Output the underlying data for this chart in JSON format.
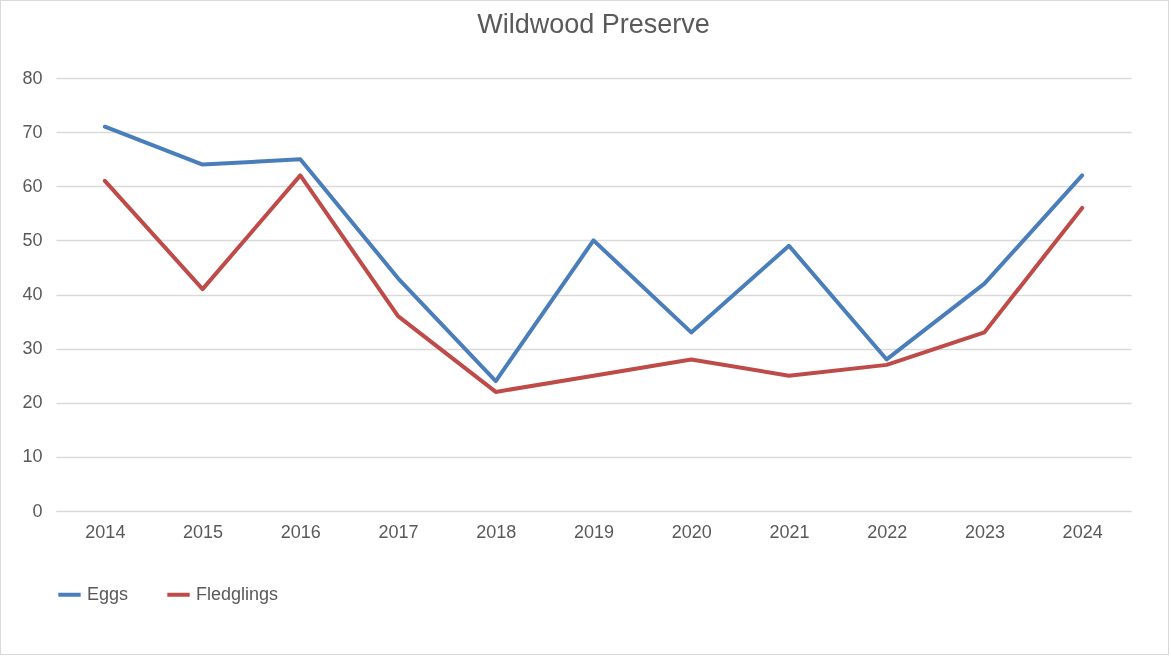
{
  "chart_data": {
    "type": "line",
    "title": "Wildwood Preserve",
    "categories": [
      "2014",
      "2015",
      "2016",
      "2017",
      "2018",
      "2019",
      "2020",
      "2021",
      "2022",
      "2023",
      "2024"
    ],
    "series": [
      {
        "name": "Eggs",
        "color": "#4a7ebb",
        "values": [
          71,
          64,
          65,
          43,
          24,
          50,
          33,
          49,
          28,
          42,
          62
        ]
      },
      {
        "name": "Fledglings",
        "color": "#be4b48",
        "values": [
          61,
          41,
          62,
          36,
          22,
          25,
          28,
          25,
          27,
          33,
          56
        ]
      }
    ],
    "ylim": [
      0,
      80
    ],
    "yticks": [
      0,
      10,
      20,
      30,
      40,
      50,
      60,
      70,
      80
    ],
    "grid": "y",
    "legend": "bottom"
  }
}
